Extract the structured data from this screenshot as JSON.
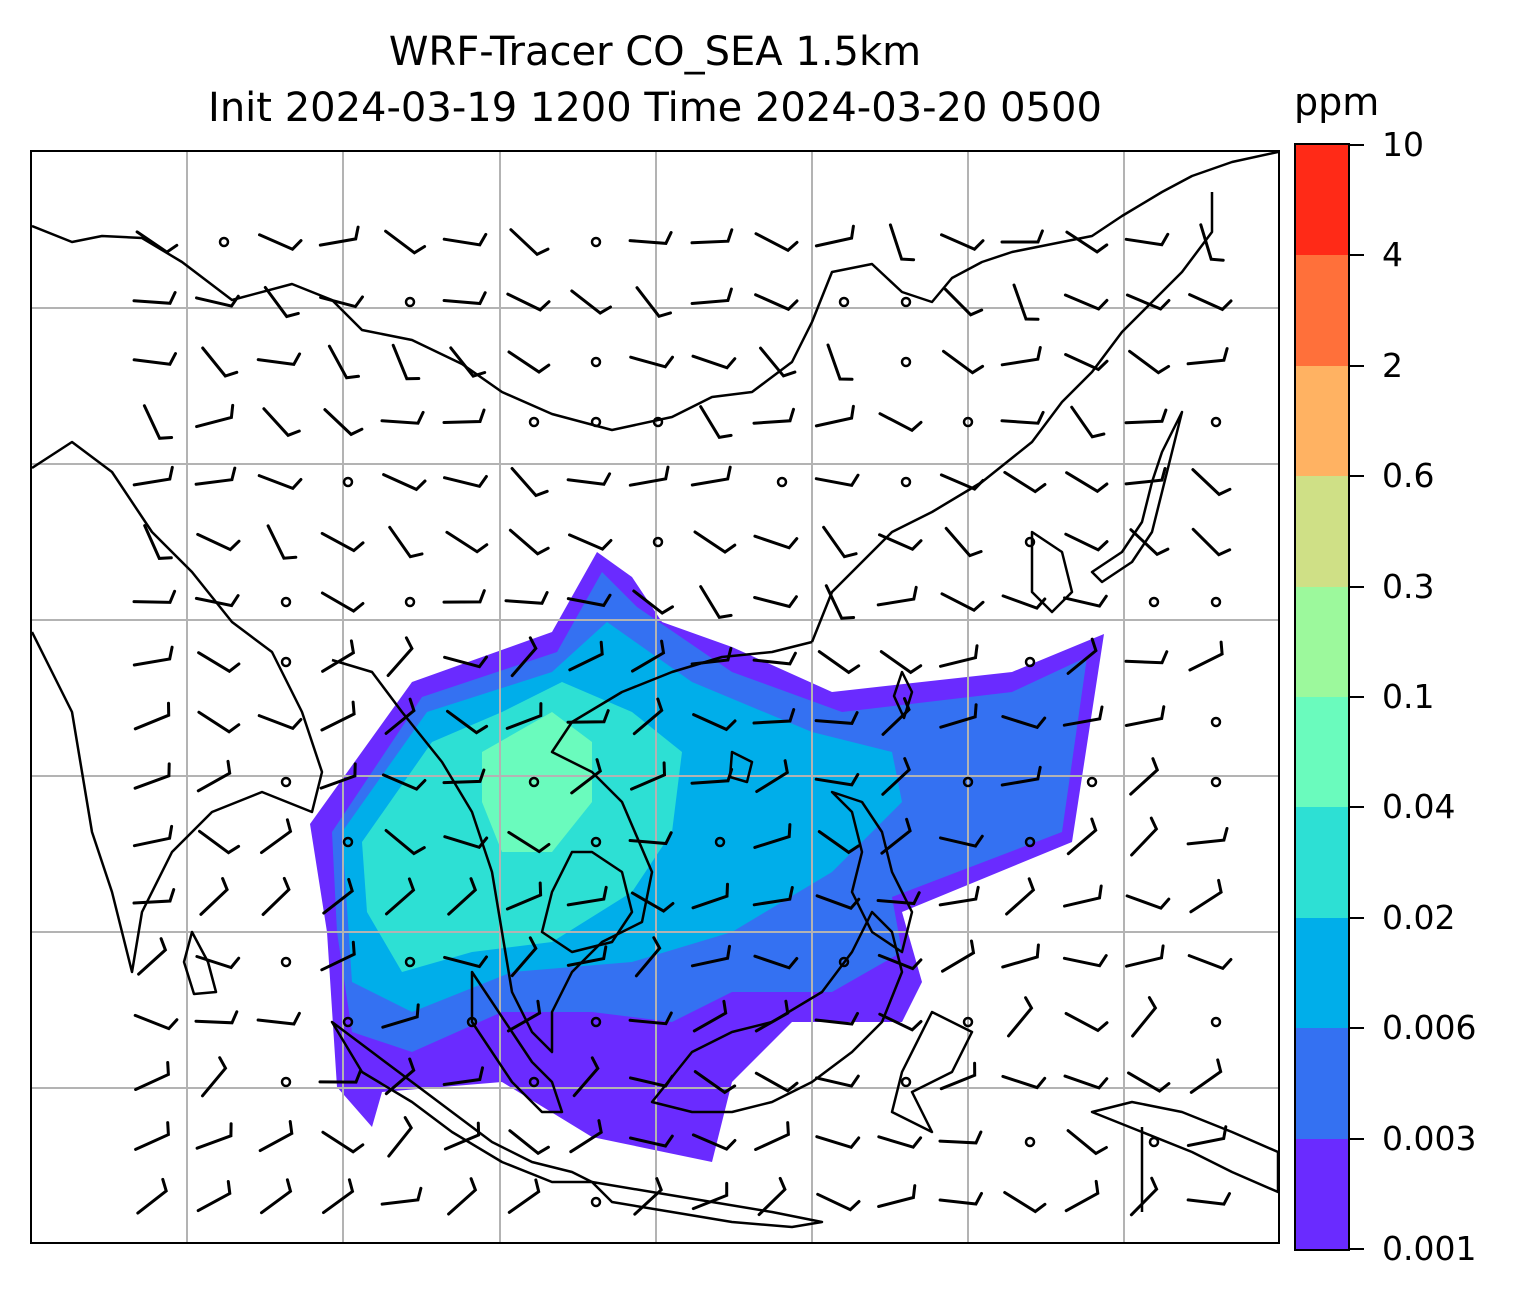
{
  "title": {
    "line1": "WRF-Tracer CO_SEA 1.5km",
    "line2": "Init 2024-03-19 1200 Time 2024-03-20 0500"
  },
  "colorbar": {
    "unit": "ppm",
    "levels": [
      {
        "label": "0.001",
        "color": "#6a2bff"
      },
      {
        "label": "0.003",
        "color": "#3471f2"
      },
      {
        "label": "0.006",
        "color": "#00aeea"
      },
      {
        "label": "0.02",
        "color": "#2de0d4"
      },
      {
        "label": "0.04",
        "color": "#6afbbd"
      },
      {
        "label": "0.1",
        "color": "#9cf99c"
      },
      {
        "label": "0.3",
        "color": "#cfe086"
      },
      {
        "label": "0.6",
        "color": "#ffb262"
      },
      {
        "label": "2",
        "color": "#ff703a"
      },
      {
        "label": "4",
        "color": "#ff2a17"
      },
      {
        "label": "10",
        "color": null
      }
    ]
  },
  "map": {
    "gridlines": true,
    "grid_color": "#b3b3b3",
    "coastline_color": "#000000",
    "wind_barbs": true,
    "plume_color_levels": [
      "#6a2bff",
      "#3471f2",
      "#00aeea",
      "#2de0d4",
      "#6afbbd"
    ]
  }
}
